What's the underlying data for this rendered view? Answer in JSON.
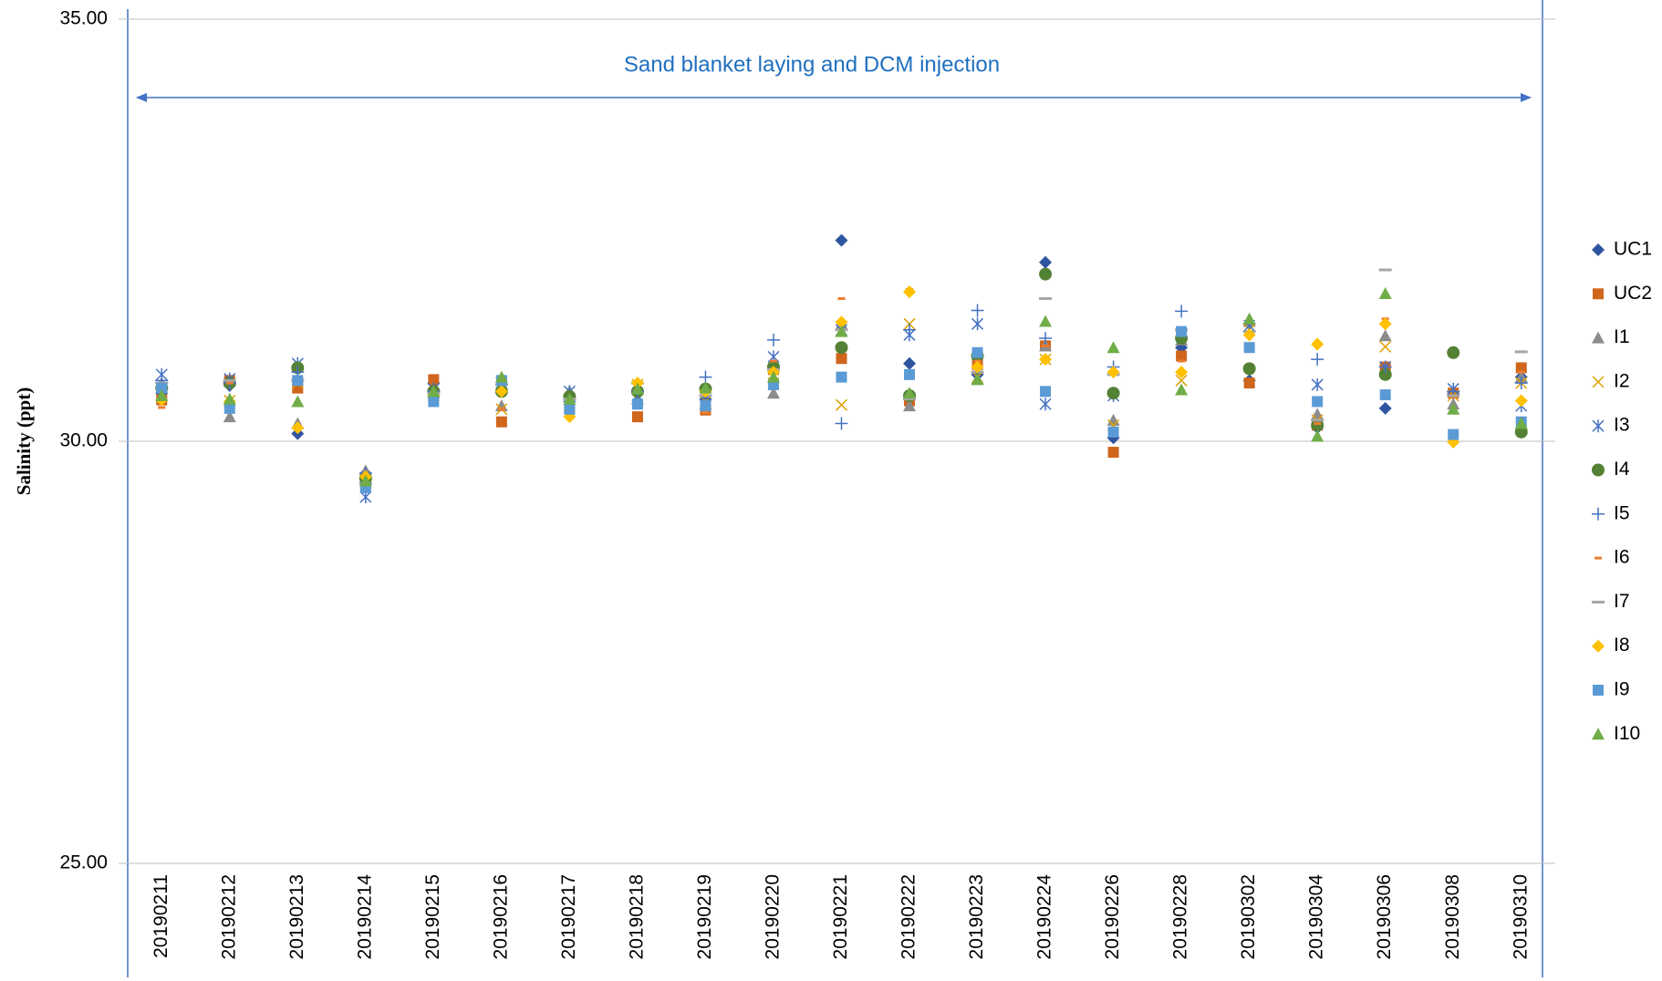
{
  "chart_data": {
    "type": "scatter",
    "y_label": "Salinity (ppt)",
    "annotation": "Sand blanket laying and DCM injection",
    "categories": [
      "20190211",
      "20190212",
      "20190213",
      "20190214",
      "20190215",
      "20190216",
      "20190217",
      "20190218",
      "20190219",
      "20190220",
      "20190221",
      "20190222",
      "20190223",
      "20190224",
      "20190226",
      "20190228",
      "20190302",
      "20190304",
      "20190306",
      "20190308",
      "20190310"
    ],
    "ylim": [
      25,
      35
    ],
    "yticks": [
      {
        "value": 25,
        "label": "25.00"
      },
      {
        "value": 30,
        "label": "30.00"
      },
      {
        "value": 35,
        "label": "35.00"
      }
    ],
    "grid": true,
    "legend": "right",
    "series": [
      {
        "name": "UC1",
        "color": "#2f55a0",
        "marker": "diamond",
        "values": [
          30.57,
          30.66,
          30.09,
          29.62,
          30.69,
          30.59,
          30.54,
          30.57,
          30.5,
          30.88,
          32.38,
          30.92,
          30.79,
          32.12,
          30.04,
          31.11,
          30.72,
          30.16,
          30.39,
          30.57,
          30.76
        ]
      },
      {
        "name": "UC2",
        "color": "#d0651c",
        "marker": "square",
        "values": [
          30.49,
          30.72,
          30.63,
          29.5,
          30.73,
          30.23,
          30.39,
          30.29,
          30.37,
          30.85,
          30.98,
          30.48,
          30.91,
          31.13,
          29.87,
          31.01,
          30.69,
          30.19,
          30.88,
          30.57,
          30.87
        ]
      },
      {
        "name": "I1",
        "color": "#8c8c8c",
        "marker": "triangle",
        "values": [
          30.69,
          30.29,
          30.21,
          29.65,
          30.57,
          30.42,
          30.59,
          30.5,
          30.44,
          30.57,
          31.39,
          30.42,
          30.74,
          31.13,
          30.25,
          31.2,
          31.42,
          30.32,
          31.25,
          30.44,
          30.76
        ]
      },
      {
        "name": "I2",
        "color": "#e0a000",
        "marker": "x",
        "values": [
          30.54,
          30.48,
          30.69,
          29.56,
          30.54,
          30.38,
          30.5,
          30.67,
          30.47,
          30.69,
          30.43,
          31.39,
          30.76,
          30.97,
          30.19,
          30.72,
          31.32,
          30.25,
          31.12,
          30.54,
          30.69
        ]
      },
      {
        "name": "I3",
        "color": "#4472c4",
        "marker": "star",
        "values": [
          30.79,
          30.74,
          30.92,
          29.34,
          30.62,
          30.69,
          30.59,
          30.54,
          30.54,
          31.0,
          31.32,
          31.26,
          31.39,
          30.44,
          30.54,
          31.26,
          31.37,
          30.67,
          30.88,
          30.62,
          30.42
        ]
      },
      {
        "name": "I4",
        "color": "#548235",
        "marker": "circle",
        "values": [
          30.63,
          30.69,
          30.87,
          29.56,
          30.59,
          30.59,
          30.53,
          30.59,
          30.62,
          30.88,
          31.11,
          30.54,
          31.01,
          31.98,
          30.57,
          31.22,
          30.86,
          30.19,
          30.79,
          31.05,
          30.11
        ]
      },
      {
        "name": "I5",
        "color": "#4472c4",
        "marker": "plus",
        "values": [
          30.72,
          30.69,
          30.82,
          29.62,
          30.59,
          30.67,
          30.47,
          30.59,
          30.76,
          31.2,
          30.21,
          31.32,
          31.55,
          31.22,
          30.88,
          31.54,
          31.39,
          30.97,
          30.88,
          30.59,
          30.69
        ]
      },
      {
        "name": "I6",
        "color": "#ed7d31",
        "marker": "dash",
        "values": [
          30.4,
          30.69,
          30.69,
          29.5,
          30.57,
          30.38,
          30.47,
          30.67,
          30.34,
          30.95,
          31.69,
          31.8,
          30.95,
          31.13,
          30.79,
          30.95,
          31.3,
          30.21,
          31.45,
          30.53,
          30.82
        ]
      },
      {
        "name": "I7",
        "color": "#a5a5a5",
        "marker": "longdash",
        "values": [
          30.69,
          30.72,
          30.72,
          29.5,
          30.57,
          30.67,
          30.5,
          30.69,
          30.54,
          30.85,
          31.32,
          30.5,
          30.82,
          31.69,
          30.79,
          31.32,
          31.3,
          30.25,
          32.03,
          30.54,
          31.06
        ]
      },
      {
        "name": "I8",
        "color": "#ffc000",
        "marker": "diamond",
        "values": [
          30.49,
          30.47,
          30.16,
          29.58,
          30.54,
          30.59,
          30.29,
          30.69,
          30.59,
          30.82,
          31.41,
          31.77,
          30.88,
          30.97,
          30.82,
          30.82,
          31.26,
          31.15,
          31.39,
          29.99,
          30.48
        ]
      },
      {
        "name": "I9",
        "color": "#5b9bd5",
        "marker": "square",
        "values": [
          30.63,
          30.39,
          30.72,
          29.45,
          30.47,
          30.72,
          30.38,
          30.44,
          30.42,
          30.67,
          30.76,
          30.79,
          31.05,
          30.59,
          30.11,
          31.3,
          31.11,
          30.47,
          30.55,
          30.08,
          30.23
        ]
      },
      {
        "name": "I10",
        "color": "#70ad47",
        "marker": "triangle",
        "values": [
          30.54,
          30.5,
          30.47,
          29.53,
          30.59,
          30.76,
          30.5,
          30.62,
          30.63,
          30.76,
          31.3,
          30.57,
          30.73,
          31.42,
          31.11,
          30.61,
          31.45,
          30.06,
          31.75,
          30.38,
          30.21
        ]
      }
    ]
  }
}
